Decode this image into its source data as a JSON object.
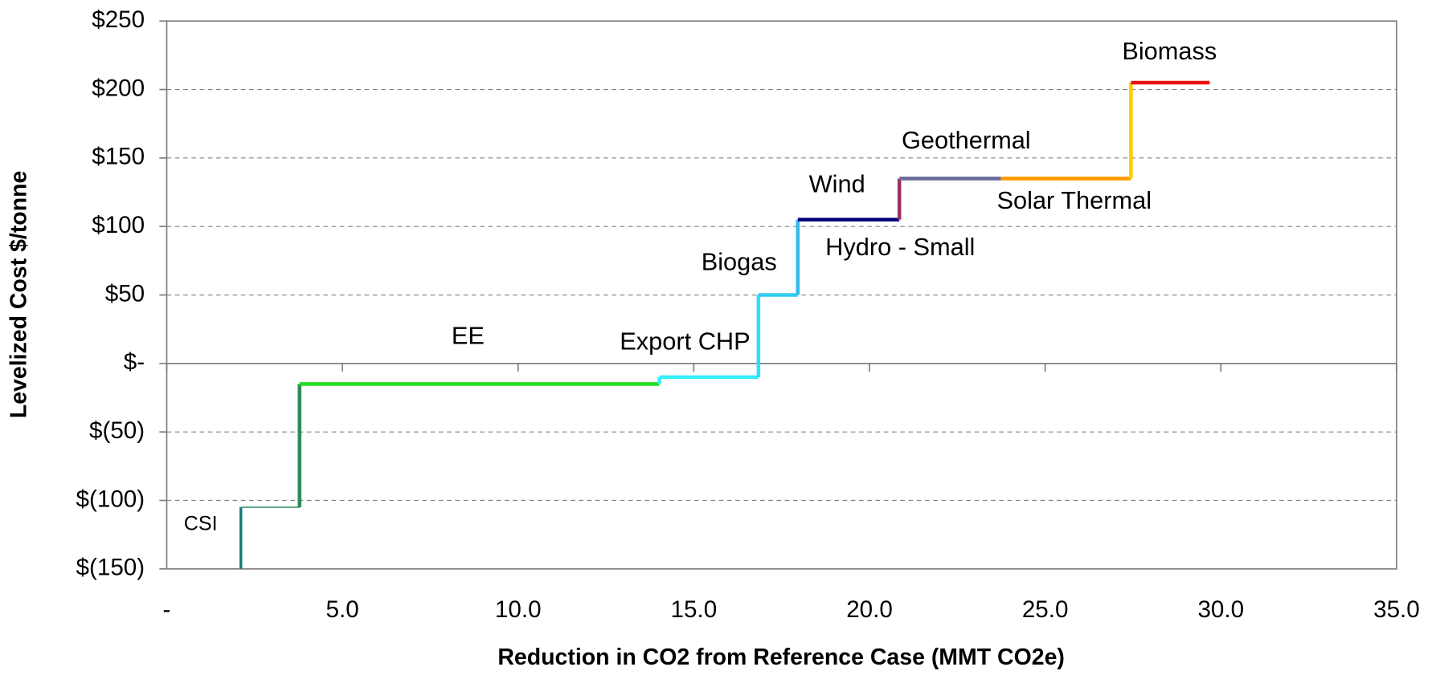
{
  "chart_data": {
    "type": "step",
    "x_label": "Reduction in CO2 from Reference Case (MMT CO2e)",
    "y_label": "Levelized Cost $/tonne",
    "xlim": [
      0,
      35
    ],
    "xticks": [
      {
        "value": 0,
        "label": "-"
      },
      {
        "value": 5,
        "label": "5.0"
      },
      {
        "value": 10,
        "label": "10.0"
      },
      {
        "value": 15,
        "label": "15.0"
      },
      {
        "value": 20,
        "label": "20.0"
      },
      {
        "value": 25,
        "label": "25.0"
      },
      {
        "value": 30,
        "label": "30.0"
      },
      {
        "value": 35,
        "label": "35.0"
      }
    ],
    "ylim": [
      -150,
      250
    ],
    "yticks": [
      {
        "value": -150,
        "label": "$(150)"
      },
      {
        "value": -100,
        "label": "$(100)"
      },
      {
        "value": -50,
        "label": "$(50)"
      },
      {
        "value": 0,
        "label": "$-"
      },
      {
        "value": 50,
        "label": "$50"
      },
      {
        "value": 100,
        "label": "$100"
      },
      {
        "value": 150,
        "label": "$150"
      },
      {
        "value": 200,
        "label": "$200"
      },
      {
        "value": 250,
        "label": "$250"
      }
    ],
    "grid": true,
    "series": [
      {
        "name": "CSI",
        "color": "#4a9a7a",
        "vertical_color": "#1a7a7a",
        "line_width": 1.5,
        "x": [
          2.11,
          3.78
        ],
        "values": [
          -105,
          -105
        ]
      },
      {
        "name": "EE",
        "color": "#22dd22",
        "vertical_color": "#2e8b57",
        "x": [
          3.78,
          14.02
        ],
        "values": [
          -15,
          -15
        ]
      },
      {
        "name": "Export CHP",
        "color": "#33eeff",
        "vertical_color": "#33eeff",
        "x": [
          14.02,
          16.84
        ],
        "values": [
          -10,
          -10
        ]
      },
      {
        "name": "Biogas",
        "color": "#33ccee",
        "vertical_color": "#33ddff",
        "x": [
          16.84,
          17.96
        ],
        "values": [
          50,
          50
        ]
      },
      {
        "name": "Hydro - Small",
        "color": "#33bbee",
        "vertical_color": "#33bbee",
        "x": [
          17.96,
          17.96
        ],
        "values": [
          105,
          105
        ]
      },
      {
        "name": "Wind",
        "color": "#000077",
        "vertical_color": "#000077",
        "x": [
          17.96,
          20.85
        ],
        "values": [
          105,
          105
        ]
      },
      {
        "name": "Geothermal",
        "color": "#6a6a9a",
        "vertical_color": "#993366",
        "x": [
          20.85,
          23.74
        ],
        "values": [
          135,
          135
        ]
      },
      {
        "name": "Solar Thermal",
        "color": "#ff9900",
        "vertical_color": "#ff9900",
        "x": [
          23.74,
          27.44
        ],
        "values": [
          135,
          135
        ]
      },
      {
        "name": "Biomass",
        "color": "#ee1111",
        "vertical_color": "#ffcc00",
        "x": [
          27.44,
          29.68
        ],
        "values": [
          205,
          205
        ]
      }
    ]
  }
}
